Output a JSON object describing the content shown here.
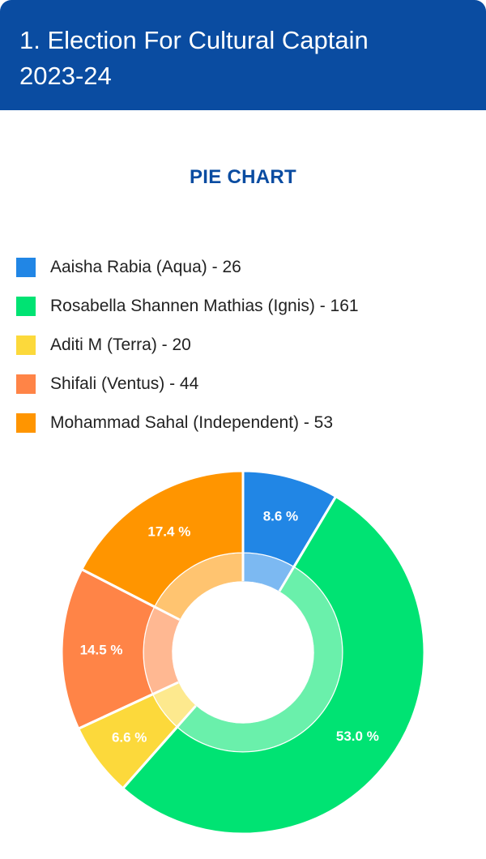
{
  "header": {
    "title_line1": "1. Election For Cultural Captain",
    "title_line2": "2023-24"
  },
  "chart_heading": "PIE CHART",
  "chart_data": {
    "type": "pie",
    "title": "",
    "slices": [
      {
        "label": "Aaisha Rabia (Aqua) - 26",
        "value": 26,
        "percent": "8.6 %",
        "color": "#2186e5",
        "inner_color": "#7cb9f2"
      },
      {
        "label": "Rosabella Shannen Mathias (Ignis) - 161",
        "value": 161,
        "percent": "53.0 %",
        "color": "#00e373",
        "inner_color": "#6af0ab"
      },
      {
        "label": "Aditi M (Terra) - 20",
        "value": 20,
        "percent": "6.6 %",
        "color": "#fcd93b",
        "inner_color": "#fde98e"
      },
      {
        "label": "Shifali (Ventus) - 44",
        "value": 44,
        "percent": "14.5 %",
        "color": "#ff8447",
        "inner_color": "#ffb892"
      },
      {
        "label": "Mohammad Sahal (Independent) - 53",
        "value": 53,
        "percent": "17.4 %",
        "color": "#ff9500",
        "inner_color": "#ffc470"
      }
    ],
    "legend_position": "top"
  }
}
